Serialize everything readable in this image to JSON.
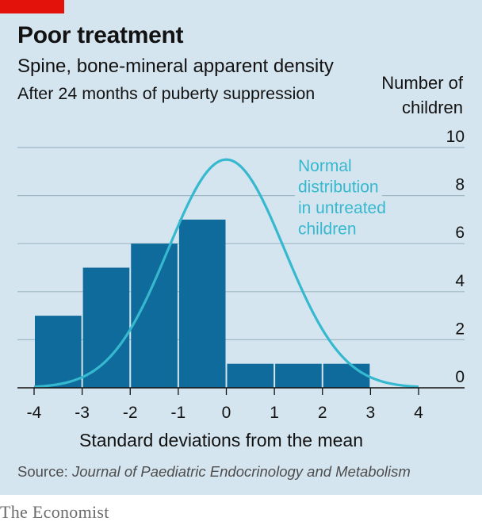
{
  "header": {
    "title": "Poor treatment",
    "subtitle": "Spine, bone-mineral apparent density",
    "subsubtitle": "After 24 months of puberty suppression"
  },
  "footer": {
    "source_prefix": "Source:",
    "source_name": "Journal of Paediatric Endocrinology and Metabolism",
    "brand": "The Economist"
  },
  "colors": {
    "background": "#d5e5ef",
    "bars": "#0e6b9c",
    "curve": "#36b8cf",
    "grid": "#9fb8c6",
    "brand_red": "#e3120b"
  },
  "chart_data": {
    "type": "bar",
    "xlabel": "Standard deviations from the mean",
    "ylabel_lines": [
      "Number of",
      "children"
    ],
    "x_ticks": [
      -4,
      -3,
      -2,
      -1,
      0,
      1,
      2,
      3,
      4
    ],
    "y_ticks": [
      0,
      2,
      4,
      6,
      8,
      10
    ],
    "xlim": [
      -4,
      4
    ],
    "ylim": [
      0,
      10
    ],
    "y_axis_side": "right",
    "grid": true,
    "bins": [
      {
        "from": -4,
        "to": -3,
        "value": 3
      },
      {
        "from": -3,
        "to": -2,
        "value": 5
      },
      {
        "from": -2,
        "to": -1,
        "value": 6
      },
      {
        "from": -1,
        "to": 0,
        "value": 7
      },
      {
        "from": 0,
        "to": 1,
        "value": 1
      },
      {
        "from": 1,
        "to": 2,
        "value": 1
      },
      {
        "from": 2,
        "to": 3,
        "value": 1
      }
    ],
    "curve": {
      "name_lines": [
        "Normal",
        "distribution",
        "in untreated",
        "children"
      ],
      "peak": 9.5,
      "mean": 0,
      "sd": 1.21,
      "x_range": [
        -4,
        4
      ]
    }
  }
}
